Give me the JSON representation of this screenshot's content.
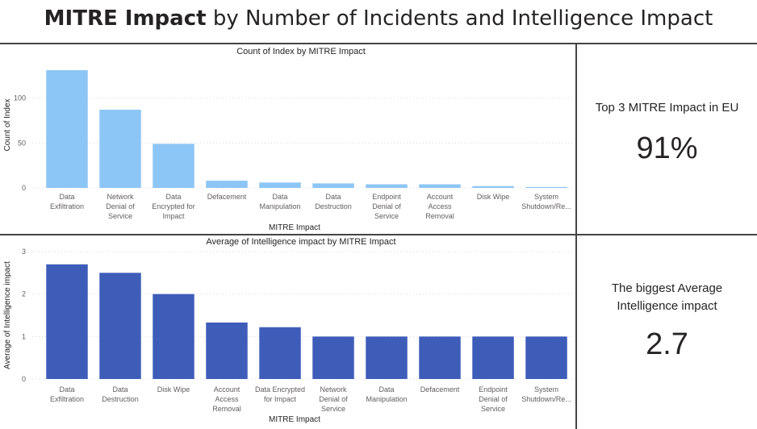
{
  "header": {
    "title_bold": "MITRE Impact",
    "title_rest": " by Number of Incidents and Intelligence Impact"
  },
  "cards": [
    {
      "label": "Top 3 MITRE Impact in EU",
      "value": "91%"
    },
    {
      "label": "The biggest Average Intelligence impact",
      "value": "2.7"
    }
  ],
  "colors": {
    "count_bar": "#8cc6f6",
    "avg_bar": "#3e5db9",
    "divider": "#444444"
  },
  "chart_data": [
    {
      "type": "bar",
      "title": "Count of Index by MITRE Impact",
      "xlabel": "MITRE Impact",
      "ylabel": "Count of Index",
      "categories": [
        [
          "Data",
          "Exfiltration"
        ],
        [
          "Network",
          "Denial of",
          "Service"
        ],
        [
          "Data",
          "Encrypted for",
          "Impact"
        ],
        [
          "Defacement"
        ],
        [
          "Data",
          "Manipulation"
        ],
        [
          "Data",
          "Destruction"
        ],
        [
          "Endpoint",
          "Denial of",
          "Service"
        ],
        [
          "Account",
          "Access",
          "Removal"
        ],
        [
          "Disk Wipe"
        ],
        [
          "System",
          "Shutdown/Re..."
        ]
      ],
      "values": [
        131,
        87,
        49,
        8,
        6,
        5,
        4,
        4,
        2,
        1
      ],
      "ylim": [
        0,
        140
      ],
      "yticks": [
        0,
        50,
        100
      ],
      "grid": true
    },
    {
      "type": "bar",
      "title": "Average of Intelligence impact by MITRE Impact",
      "xlabel": "MITRE Impact",
      "ylabel": "Average of Intelligence impact",
      "categories": [
        [
          "Data",
          "Exfiltration"
        ],
        [
          "Data",
          "Destruction"
        ],
        [
          "Disk Wipe"
        ],
        [
          "Account",
          "Access",
          "Removal"
        ],
        [
          "Data Encrypted",
          "for Impact"
        ],
        [
          "Network",
          "Denial of",
          "Service"
        ],
        [
          "Data",
          "Manipulation"
        ],
        [
          "Defacement"
        ],
        [
          "Endpoint",
          "Denial of",
          "Service"
        ],
        [
          "System",
          "Shutdown/Re..."
        ]
      ],
      "values": [
        2.7,
        2.5,
        2.0,
        1.33,
        1.22,
        1.0,
        1.0,
        1.0,
        1.0,
        1.0
      ],
      "ylim": [
        0,
        3
      ],
      "yticks": [
        0,
        1,
        2,
        3
      ],
      "grid": true
    }
  ]
}
